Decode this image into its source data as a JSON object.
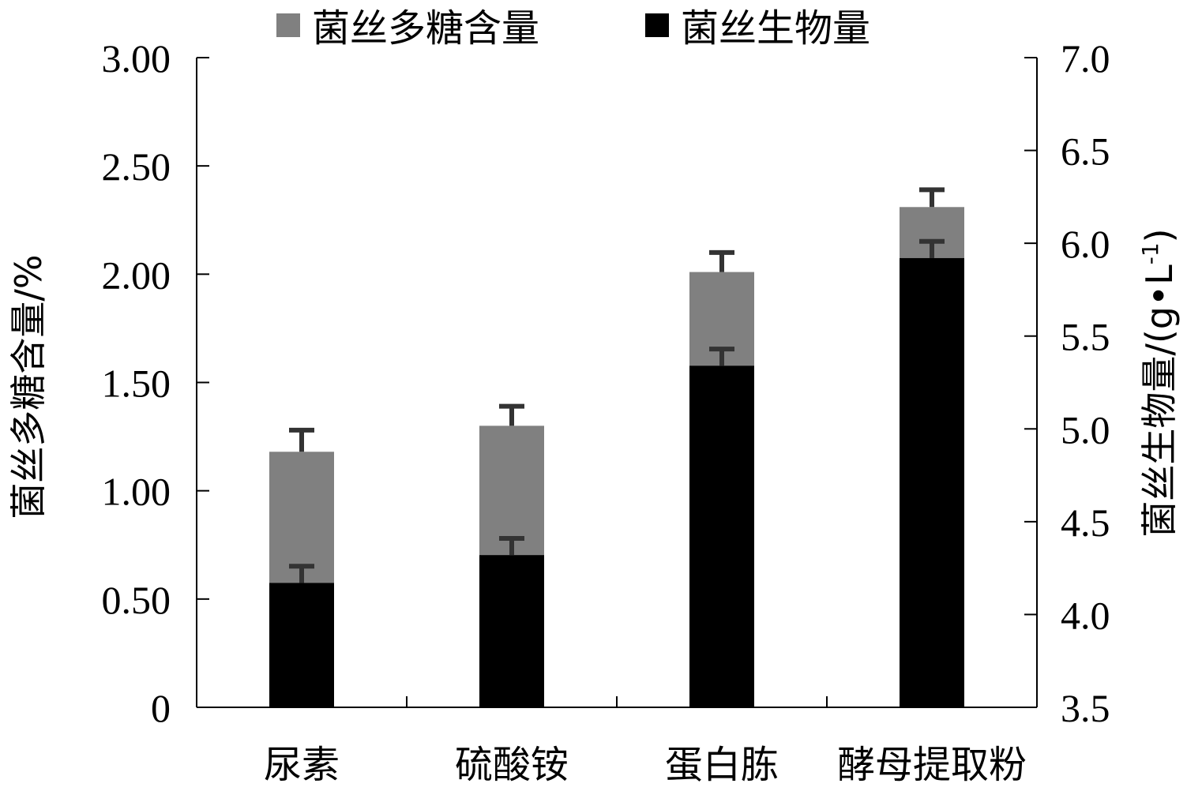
{
  "chart_data": {
    "type": "bar",
    "categories": [
      "尿素",
      "硫酸铵",
      "蛋白胨",
      "酵母提取粉"
    ],
    "series": [
      {
        "name": "菌丝多糖含量",
        "axis": "left",
        "color": "#808080",
        "values": [
          1.18,
          1.3,
          2.01,
          2.31
        ],
        "errors": [
          0.1,
          0.09,
          0.09,
          0.08
        ]
      },
      {
        "name": "菌丝生物量",
        "axis": "right",
        "color": "#000000",
        "values": [
          4.17,
          4.32,
          5.34,
          5.92
        ],
        "errors": [
          0.09,
          0.09,
          0.09,
          0.09
        ]
      }
    ],
    "ylabel": "菌丝多糖含量/%",
    "ylabel_right": "菌丝生物量/(g•L-1)",
    "ylim": [
      0,
      3.0
    ],
    "ylim_right": [
      3.5,
      7.0
    ],
    "yticks": [
      "0",
      "0.50",
      "1.00",
      "1.50",
      "2.00",
      "2.50",
      "3.00"
    ],
    "yticks_right": [
      "3.5",
      "4.0",
      "4.5",
      "5.0",
      "5.5",
      "6.0",
      "6.5",
      "7.0"
    ],
    "legend_position": "top-center",
    "grid": false
  }
}
